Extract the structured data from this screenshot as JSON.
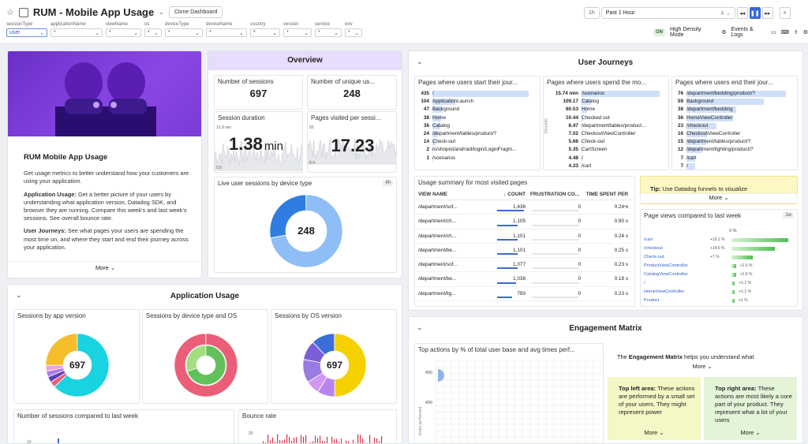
{
  "header": {
    "title": "RUM - Mobile App Usage",
    "clone_label": "Clone Dashboard",
    "time_short": "1h",
    "time_label": "Past 1 Hour",
    "on_badge": "ON",
    "high_density": "High Density Mode",
    "events_logs": "Events & Logs"
  },
  "filters": [
    {
      "name": "sessionType",
      "value": "user"
    },
    {
      "name": "applicationName",
      "value": "*"
    },
    {
      "name": "viewName",
      "value": "*"
    },
    {
      "name": "os",
      "value": "*"
    },
    {
      "name": "deviceType",
      "value": "*"
    },
    {
      "name": "deviceName",
      "value": "*"
    },
    {
      "name": "country",
      "value": "*"
    },
    {
      "name": "version",
      "value": "*"
    },
    {
      "name": "service",
      "value": "*"
    },
    {
      "name": "env",
      "value": "*"
    }
  ],
  "intro": {
    "title": "RUM Mobile App Usage",
    "p1": "Get usage metrics to better understand how your customers are using your application.",
    "p2_bold": "Application Usage:",
    "p2": " Get a better picture of your users by understanding what application version, Datadog SDK, and browser they are running. Compare this week's and last week's sessions. See overall bounce rate.",
    "p3_bold": "User Journeys:",
    "p3": " See what pages your users are spending the most time on, and where they start and end their journey across your application.",
    "more": "More"
  },
  "overview": {
    "title": "Overview",
    "sessions_label": "Number of sessions",
    "sessions_value": "697",
    "unique_label": "Number of unique us...",
    "unique_value": "248",
    "duration_label": "Session duration",
    "duration_value": "1.38",
    "duration_unit": "min",
    "duration_ymax": "12.9 min",
    "duration_ymin": "5.6",
    "pages_label": "Pages visited per sessi...",
    "pages_value": "17.23",
    "pages_ymax": "50",
    "pages_ymin": "8.4",
    "live_label": "Live user sessions by device type",
    "live_badge": "4h",
    "live_value": "248"
  },
  "app_usage": {
    "title": "Application Usage",
    "by_version": "Sessions by app version",
    "by_version_value": "697",
    "by_device": "Sessions by device type and OS",
    "by_os": "Sessions by OS version",
    "by_os_value": "697",
    "compare": "Number of sessions compared to last week",
    "compare_tick": "10",
    "bounce": "Bounce rate",
    "bounce_tick": "25"
  },
  "journeys": {
    "title": "User Journeys",
    "start_title": "Pages where users start their jour...",
    "start": [
      {
        "n": "435",
        "t": "/",
        "pct": 100
      },
      {
        "n": "104",
        "t": "ApplicationLaunch",
        "pct": 24
      },
      {
        "n": "47",
        "t": "Background",
        "pct": 11
      },
      {
        "n": "38",
        "t": "Home",
        "pct": 9
      },
      {
        "n": "36",
        "t": "Catalog",
        "pct": 8
      },
      {
        "n": "24",
        "t": "/department/tables/product/?",
        "pct": 6
      },
      {
        "n": "14",
        "t": "Check-out",
        "pct": 3
      },
      {
        "n": "2",
        "t": "io/shopist/android/login/LoginFragm...",
        "pct": 1
      },
      {
        "n": "1",
        "t": "/scenarios",
        "pct": 1
      }
    ],
    "spend_title": "Pages where users spend the mo...",
    "spend_axis": "Seconds",
    "spend": [
      {
        "n": "15.74 min",
        "t": "/scenarios",
        "pct": 100
      },
      {
        "n": "109.17",
        "t": "Catalog",
        "pct": 12
      },
      {
        "n": "60.53",
        "t": "Home",
        "pct": 7
      },
      {
        "n": "10.44",
        "t": "Checked out",
        "pct": 2
      },
      {
        "n": "8.47",
        "t": "/department/tables/product...",
        "pct": 1
      },
      {
        "n": "7.02",
        "t": "CheckoutViewController",
        "pct": 1
      },
      {
        "n": "5.66",
        "t": "Check-out",
        "pct": 1
      },
      {
        "n": "5.35",
        "t": "CartScreen",
        "pct": 1
      },
      {
        "n": "4.48",
        "t": "/",
        "pct": 1
      },
      {
        "n": "4.33",
        "t": "/cart",
        "pct": 1
      }
    ],
    "end_title": "Pages where users end their jour...",
    "end": [
      {
        "n": "76",
        "t": "/department/bedding/product/?",
        "pct": 100
      },
      {
        "n": "59",
        "t": "Background",
        "pct": 78
      },
      {
        "n": "38",
        "t": "/department/bedding",
        "pct": 50
      },
      {
        "n": "36",
        "t": "HomeViewController",
        "pct": 47
      },
      {
        "n": "23",
        "t": "/checkout",
        "pct": 30
      },
      {
        "n": "16",
        "t": "CheckoutViewController",
        "pct": 21
      },
      {
        "n": "15",
        "t": "/department/tables/product/?",
        "pct": 20
      },
      {
        "n": "12",
        "t": "/department/lighting/product/?",
        "pct": 16
      },
      {
        "n": "7",
        "t": "/cart",
        "pct": 9
      },
      {
        "n": "7",
        "t": "/",
        "pct": 9
      }
    ],
    "usage_title": "Usage summary for most visited pages",
    "col_view": "VIEW NAME",
    "col_count": "COUNT",
    "col_frustration": "FRUSTRATION CO...",
    "col_time": "TIME SPENT PER ...",
    "rows": [
      {
        "view": "/department/sof...",
        "count": "1,436",
        "fr": "0",
        "time": "0.24 s",
        "pct": 100
      },
      {
        "view": "/department/ch...",
        "count": "1,105",
        "fr": "0",
        "time": "0.90 s",
        "pct": 77
      },
      {
        "view": "/department/ch...",
        "count": "1,101",
        "fr": "0",
        "time": "0.24 s",
        "pct": 77
      },
      {
        "view": "/department/be...",
        "count": "1,101",
        "fr": "0",
        "time": "0.25 s",
        "pct": 77
      },
      {
        "view": "/department/sof...",
        "count": "1,077",
        "fr": "0",
        "time": "0.23 s",
        "pct": 75
      },
      {
        "view": "/department/be...",
        "count": "1,038",
        "fr": "0",
        "time": "0.18 s",
        "pct": 72
      },
      {
        "view": "/department/lig...",
        "count": "793",
        "fr": "0",
        "time": "0.23 s",
        "pct": 55
      }
    ],
    "tip_bold": "Tip:",
    "tip": " Use Datadog funnels to visualize",
    "tip_more": "More",
    "compare_title": "Page views compared to last week",
    "compare_badge": "1w",
    "compare_top": "0 %",
    "compare_rows": [
      {
        "t": "/cart",
        "v": "+19.1 %",
        "pct": 100
      },
      {
        "t": "/checkout",
        "v": "+14.6 %",
        "pct": 76
      },
      {
        "t": "Check-out",
        "v": "+7 %",
        "pct": 37
      },
      {
        "t": "ProductViewController",
        "v": "+1.5 %",
        "pct": 8
      },
      {
        "t": "CatalogViewController",
        "v": "+1.5 %",
        "pct": 8
      },
      {
        "t": "/",
        "v": "+1.2 %",
        "pct": 6
      },
      {
        "t": "HomeViewController",
        "v": "+1.1 %",
        "pct": 6
      },
      {
        "t": "Product",
        "v": "+1 %",
        "pct": 5
      }
    ]
  },
  "engagement": {
    "title": "Engagement Matrix",
    "chart_title": "Top actions by % of total user base and avg times perf...",
    "axis_label": "times performed",
    "tick_450": "450",
    "tick_400": "400",
    "intro_pre": "The ",
    "intro_bold": "Engagement Matrix",
    "intro_post": " helps you understand what",
    "more": "More",
    "tl_bold": "Top left area:",
    "tl": " These actions are performed by a small set of your users. They might represent power",
    "tr_bold": "Top right area:",
    "tr": " These actions are most likely a core part of your product. They represent what a lot of your users",
    "tl_more": "More",
    "tr_more": "More"
  },
  "colors": {
    "accent": "#3b6ad8",
    "cyan": "#19d3e0",
    "yellow": "#f5bd2a",
    "purple": "#7d63d9",
    "pink": "#e9607a",
    "green": "#62c15a",
    "blue_light": "#8fbef6"
  }
}
